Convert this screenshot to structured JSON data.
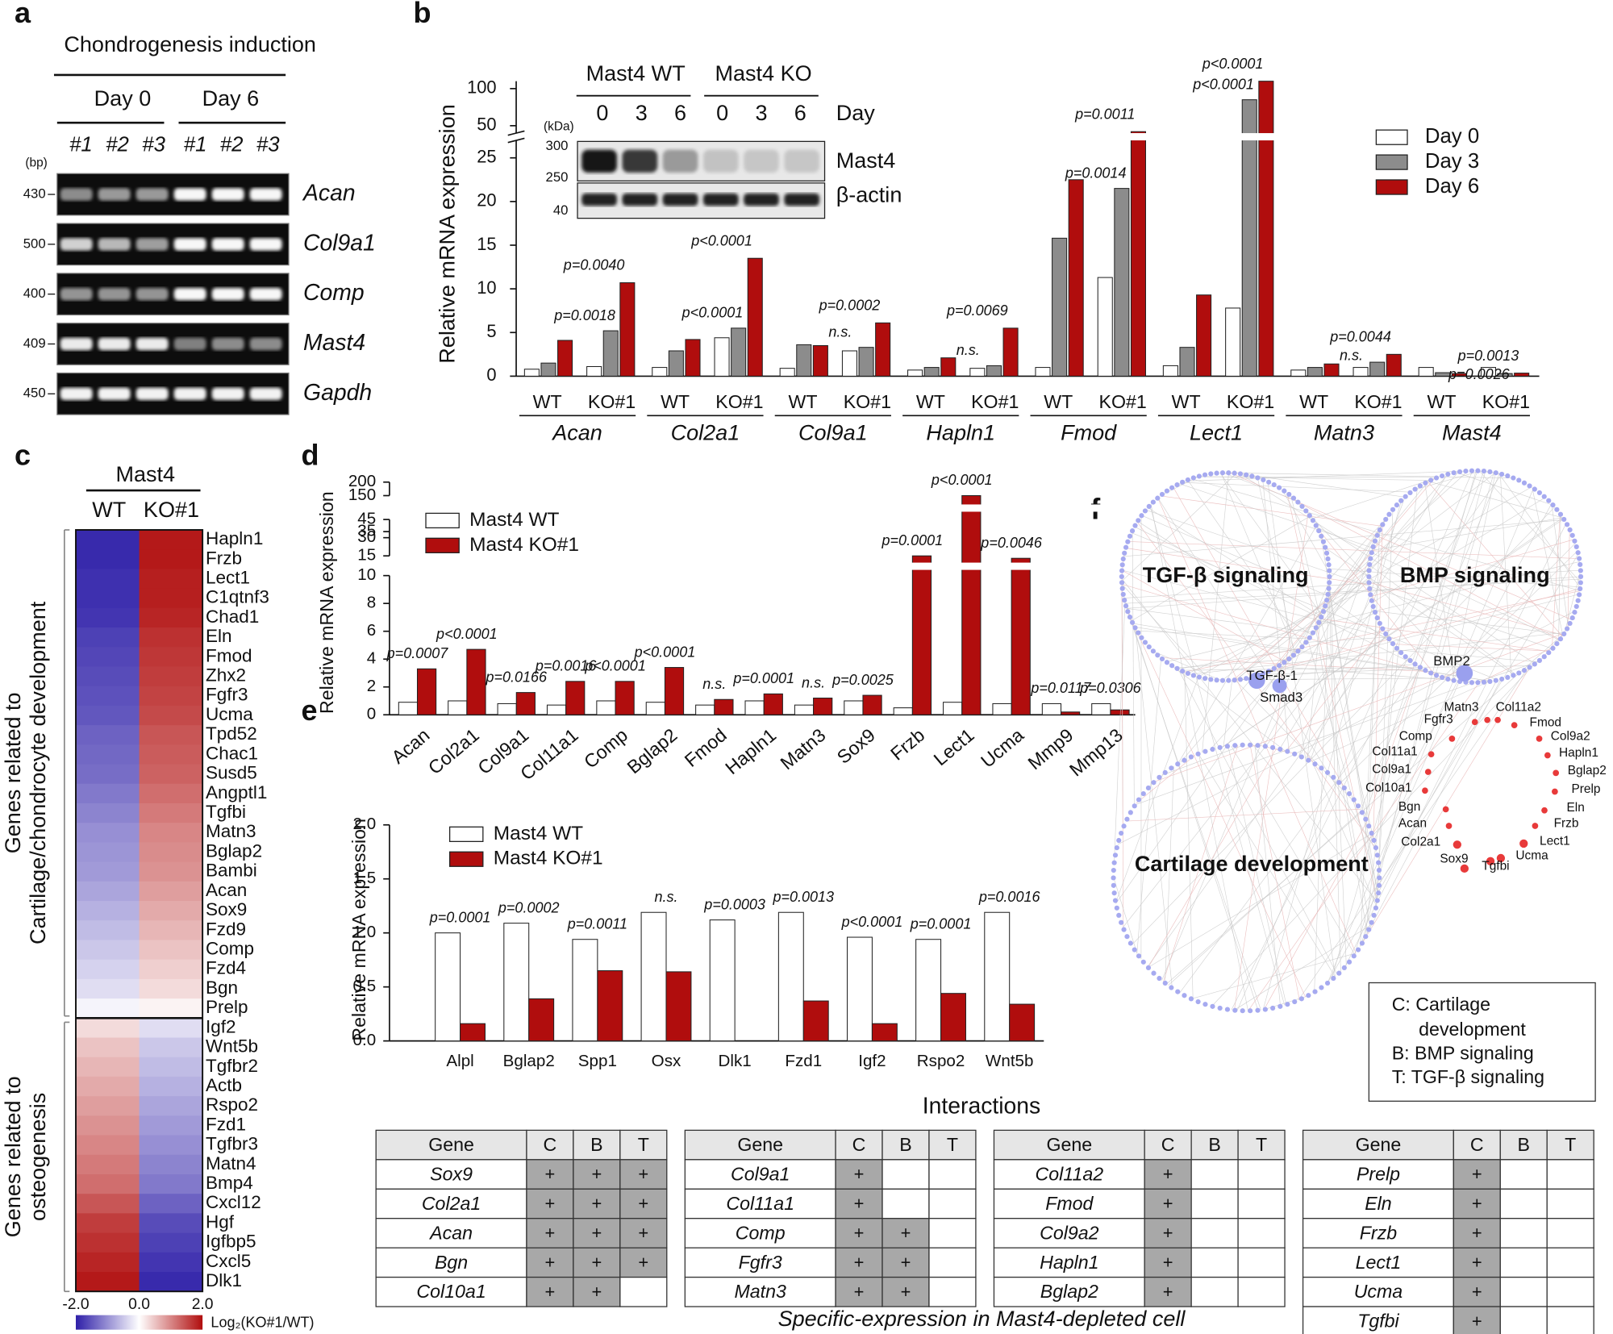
{
  "panel_labels": [
    "a",
    "b",
    "c",
    "d",
    "e",
    "f"
  ],
  "gel": {
    "title": "Chondrogenesis induction",
    "days": [
      "Day 0",
      "Day 6"
    ],
    "lanes": [
      "#1",
      "#2",
      "#3"
    ],
    "size_unit": "(bp)",
    "rows": [
      {
        "gene": "Acan",
        "bp": 430
      },
      {
        "gene": "Col9a1",
        "bp": 500
      },
      {
        "gene": "Comp",
        "bp": 400
      },
      {
        "gene": "Mast4",
        "bp": 409
      },
      {
        "gene": "Gapdh",
        "bp": 450
      }
    ]
  },
  "chart_data": [
    {
      "type": "grouped_bar",
      "ylabel": "Relative mRNA expression",
      "groups": [
        "Acan",
        "Col2a1",
        "Col9a1",
        "Hapln1",
        "Fmod",
        "Lect1",
        "Matn3",
        "Mast4"
      ],
      "subgroups": [
        "WT",
        "KO#1"
      ],
      "series": [
        {
          "name": "Day 0",
          "color": "#ffffff",
          "values": [
            0.8,
            1.1,
            1.0,
            4.4,
            0.9,
            2.9,
            0.7,
            0.9,
            1.0,
            11.3,
            1.2,
            7.8,
            0.7,
            1.0,
            1.0,
            1.0
          ]
        },
        {
          "name": "Day 3",
          "color": "#8c8c8c",
          "values": [
            1.5,
            5.2,
            2.9,
            5.5,
            3.6,
            3.3,
            1.0,
            1.2,
            15.8,
            21.5,
            3.3,
            85,
            1.0,
            1.6,
            0.4,
            0.3
          ],
          "annotations": [
            "p=0.0018",
            "p<0.0001",
            "n.s.",
            "n.s.",
            "p=0.0014",
            "p<0.0001",
            "n.s.",
            "p=0.0026"
          ]
        },
        {
          "name": "Day 6",
          "color": "#b00d0d",
          "values": [
            4.1,
            10.7,
            4.2,
            13.5,
            3.5,
            6.1,
            2.1,
            5.5,
            22.5,
            42,
            9.3,
            110,
            1.4,
            2.5,
            0.3,
            0.35
          ],
          "annotations": [
            "p=0.0040",
            "p<0.0001",
            "p=0.0002",
            "p=0.0069",
            "p=0.0011",
            "p<0.0001",
            "p=0.0044",
            "p=0.0013"
          ]
        }
      ],
      "ylim": [
        [
          0,
          27
        ],
        [
          40,
          110
        ]
      ],
      "yticks": [
        0,
        5,
        10,
        15,
        20,
        25,
        50,
        100
      ],
      "legend": "right",
      "inset": {
        "groups": [
          "Mast4 WT",
          "Mast4 KO"
        ],
        "days": [
          "0",
          "3",
          "6",
          "0",
          "3",
          "6"
        ],
        "day_label": "Day",
        "unit": "(kDa)",
        "markers": [
          "300",
          "250",
          "40"
        ],
        "proteins": [
          "Mast4",
          "β-actin"
        ]
      }
    },
    {
      "type": "bar",
      "ylabel": "Relative mRNA expression",
      "categories": [
        "Acan",
        "Col2a1",
        "Col9a1",
        "Col11a1",
        "Comp",
        "Bglap2",
        "Fmod",
        "Hapln1",
        "Matn3",
        "Sox9",
        "Frzb",
        "Lect1",
        "Ucma",
        "Mmp9",
        "Mmp13"
      ],
      "series": [
        {
          "name": "Mast4 WT",
          "color": "#ffffff",
          "values": [
            0.9,
            1.0,
            0.8,
            0.7,
            1.0,
            0.9,
            0.7,
            1.0,
            0.7,
            1.0,
            0.5,
            0.9,
            0.8,
            0.8,
            0.8
          ]
        },
        {
          "name": "Mast4 KO#1",
          "color": "#b00d0d",
          "values": [
            3.3,
            4.7,
            1.6,
            2.4,
            2.4,
            3.4,
            1.1,
            1.5,
            1.2,
            1.4,
            15,
            150,
            13,
            0.2,
            0.35
          ]
        }
      ],
      "annotations": [
        "p=0.0007",
        "p<0.0001",
        "p=0.0166",
        "p=0.0016",
        "p<0.0001",
        "p<0.0001",
        "n.s.",
        "p=0.0001",
        "n.s.",
        "p=0.0025",
        "p=0.0001",
        "p<0.0001",
        "p=0.0046",
        "p=0.0117",
        "p=0.0306"
      ],
      "ylim": [
        [
          0,
          10
        ],
        [
          15,
          45
        ],
        [
          150,
          200
        ]
      ],
      "yticks": [
        0,
        2,
        4,
        6,
        8,
        10,
        15,
        30,
        35,
        45,
        150,
        200
      ],
      "legend": "upper left"
    },
    {
      "type": "bar",
      "ylabel": "Relative mRNA expression",
      "categories": [
        "Alpl",
        "Bglap2",
        "Spp1",
        "Osx",
        "Dlk1",
        "Fzd1",
        "Igf2",
        "Rspo2",
        "Wnt5b"
      ],
      "series": [
        {
          "name": "Mast4 WT",
          "color": "#ffffff",
          "values": [
            1.0,
            1.09,
            0.94,
            1.19,
            1.12,
            1.19,
            0.96,
            0.94,
            1.19
          ]
        },
        {
          "name": "Mast4 KO#1",
          "color": "#b00d0d",
          "values": [
            0.16,
            0.39,
            0.65,
            0.64,
            0.0,
            0.37,
            0.16,
            0.44,
            0.34
          ]
        }
      ],
      "annotations": [
        "p=0.0001",
        "p=0.0002",
        "p=0.0011",
        "n.s.",
        "p=0.0003",
        "p=0.0013",
        "p<0.0001",
        "p=0.0001",
        "p=0.0016"
      ],
      "ylim": [
        [
          0,
          2
        ]
      ],
      "yticks": [
        {
          "value": 0,
          "label": "0.0"
        },
        {
          "value": 0.5,
          "label": "0.5"
        },
        {
          "value": 1,
          "label": "1.0"
        },
        {
          "value": 1.5,
          "label": "1.5"
        },
        {
          "value": 2,
          "label": "2.0"
        }
      ],
      "legend": "upper left"
    }
  ],
  "heatmap": {
    "title": "Mast4",
    "columns": [
      "WT",
      "KO#1"
    ],
    "genes": [
      "Hapln1",
      "Frzb",
      "Lect1",
      "C1qtnf3",
      "Chad1",
      "Eln",
      "Fmod",
      "Zhx2",
      "Fgfr3",
      "Ucma",
      "Tpd52",
      "Chac1",
      "Susd5",
      "Angptl1",
      "Tgfbi",
      "Matn3",
      "Bglap2",
      "Bambi",
      "Acan",
      "Sox9",
      "Fzd9",
      "Comp",
      "Fzd4",
      "Bgn",
      "Prelp",
      "Igf2",
      "Wnt5b",
      "Tgfbr2",
      "Actb",
      "Rspo2",
      "Fzd1",
      "Tgfbr3",
      "Matn4",
      "Bmp4",
      "Cxcl12",
      "Hgf",
      "Igfbp5",
      "Cxcl5",
      "Dlk1"
    ],
    "WT": [
      -1.9,
      -1.9,
      -1.85,
      -1.85,
      -1.8,
      -1.7,
      -1.65,
      -1.6,
      -1.55,
      -1.5,
      -1.4,
      -1.35,
      -1.3,
      -1.2,
      -1.1,
      -1.0,
      -0.95,
      -0.9,
      -0.8,
      -0.7,
      -0.6,
      -0.5,
      -0.4,
      -0.3,
      -0.1,
      0.3,
      0.5,
      0.6,
      0.7,
      0.8,
      0.9,
      1.0,
      1.1,
      1.2,
      1.4,
      1.6,
      1.7,
      1.8,
      1.9
    ],
    "KO#1": [
      1.9,
      1.9,
      1.85,
      1.85,
      1.8,
      1.7,
      1.65,
      1.6,
      1.55,
      1.5,
      1.4,
      1.35,
      1.3,
      1.2,
      1.1,
      1.0,
      0.95,
      0.9,
      0.8,
      0.7,
      0.6,
      0.5,
      0.4,
      0.3,
      0.1,
      -0.3,
      -0.5,
      -0.6,
      -0.7,
      -0.8,
      -0.9,
      -1.0,
      -1.1,
      -1.2,
      -1.4,
      -1.6,
      -1.7,
      -1.8,
      -1.9
    ],
    "group_labels": [
      [
        "Genes related to",
        "Cartilage/chondrocyte development"
      ],
      [
        "Genes related to",
        "osteogenesis"
      ]
    ],
    "clim": [
      -2,
      2
    ],
    "colorbar_ticks": [
      {
        "value": -2,
        "label": "-2.0"
      },
      {
        "value": 0,
        "label": "0.0"
      },
      {
        "value": 2,
        "label": "2.0"
      }
    ],
    "colorbar_label": "Log₂(KO#1/WT)"
  },
  "network": {
    "clusters": [
      "TGF-β signaling",
      "BMP signaling",
      "Cartilage development"
    ],
    "hubs": [
      "TGF-β-1",
      "Smad3",
      "BMP2"
    ],
    "genes": [
      "Matn3",
      "Col11a2",
      "Fgfr3",
      "Fmod",
      "Comp",
      "Col9a2",
      "Col11a1",
      "Hapln1",
      "Col9a1",
      "Bglap2",
      "Col10a1",
      "Prelp",
      "Bgn",
      "Eln",
      "Acan",
      "Frzb",
      "Col2a1",
      "Lect1",
      "Sox9",
      "Ucma",
      "Tgfbi"
    ],
    "legend": [
      "C: Cartilage",
      "development",
      "B: BMP signaling",
      "T: TGF-β signaling"
    ]
  },
  "interactions": {
    "title": "Interactions",
    "columns": [
      "Gene",
      "C",
      "B",
      "T"
    ],
    "tables": [
      [
        {
          "gene": "Sox9",
          "marks": [
            "+",
            "+",
            "+"
          ]
        },
        {
          "gene": "Col2a1",
          "marks": [
            "+",
            "+",
            "+"
          ]
        },
        {
          "gene": "Acan",
          "marks": [
            "+",
            "+",
            "+"
          ]
        },
        {
          "gene": "Bgn",
          "marks": [
            "+",
            "+",
            "+"
          ]
        },
        {
          "gene": "Col10a1",
          "marks": [
            "+",
            "+"
          ]
        }
      ],
      [
        {
          "gene": "Col9a1",
          "marks": [
            "+"
          ]
        },
        {
          "gene": "Col11a1",
          "marks": [
            "+"
          ]
        },
        {
          "gene": "Comp",
          "marks": [
            "+",
            "+"
          ]
        },
        {
          "gene": "Fgfr3",
          "marks": [
            "+",
            "+"
          ]
        },
        {
          "gene": "Matn3",
          "marks": [
            "+",
            "+"
          ]
        }
      ],
      [
        {
          "gene": "Col11a2",
          "marks": [
            "+"
          ]
        },
        {
          "gene": "Fmod",
          "marks": [
            "+"
          ]
        },
        {
          "gene": "Col9a2",
          "marks": [
            "+"
          ]
        },
        {
          "gene": "Hapln1",
          "marks": [
            "+"
          ]
        },
        {
          "gene": "Bglap2",
          "marks": [
            "+"
          ]
        }
      ],
      [
        {
          "gene": "Prelp",
          "marks": [
            "+"
          ]
        },
        {
          "gene": "Eln",
          "marks": [
            "+"
          ]
        },
        {
          "gene": "Frzb",
          "marks": [
            "+"
          ]
        },
        {
          "gene": "Lect1",
          "marks": [
            "+"
          ]
        },
        {
          "gene": "Ucma",
          "marks": [
            "+"
          ]
        },
        {
          "gene": "Tgfbi",
          "marks": [
            "+"
          ]
        }
      ]
    ],
    "caption": "Specific-expression in Mast4-depleted cell"
  }
}
